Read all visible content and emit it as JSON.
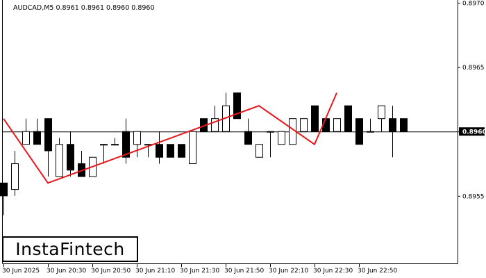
{
  "chart_data": {
    "type": "candlestick",
    "symbol_info": "AUDCAD,M5  0.8961 0.8961 0.8960 0.8960",
    "y_ticks": [
      "0.8970",
      "0.8965",
      "0.8960",
      "0.8955"
    ],
    "current_price": "0.8960",
    "x_ticks": [
      "30 Jun 2025",
      "30 Jun 20:30",
      "30 Jun 20:50",
      "30 Jun 21:10",
      "30 Jun 21:30",
      "30 Jun 21:50",
      "30 Jun 22:10",
      "30 Jun 22:30",
      "30 Jun 22:50"
    ],
    "ylim": [
      0.89497,
      0.897
    ],
    "candles": [
      {
        "o": 0.8956,
        "h": 0.8956,
        "l": 0.89535,
        "c": 0.8955
      },
      {
        "o": 0.89555,
        "h": 0.89585,
        "l": 0.8955,
        "c": 0.89575
      },
      {
        "o": 0.8959,
        "h": 0.8961,
        "l": 0.8959,
        "c": 0.896
      },
      {
        "o": 0.896,
        "h": 0.8961,
        "l": 0.8959,
        "c": 0.8959
      },
      {
        "o": 0.8961,
        "h": 0.8961,
        "l": 0.89565,
        "c": 0.89585
      },
      {
        "o": 0.89565,
        "h": 0.89595,
        "l": 0.89565,
        "c": 0.8959
      },
      {
        "o": 0.8959,
        "h": 0.896,
        "l": 0.89565,
        "c": 0.8957
      },
      {
        "o": 0.89575,
        "h": 0.89585,
        "l": 0.89565,
        "c": 0.89565
      },
      {
        "o": 0.89565,
        "h": 0.8958,
        "l": 0.89565,
        "c": 0.8958
      },
      {
        "o": 0.8959,
        "h": 0.8959,
        "l": 0.89575,
        "c": 0.8959
      },
      {
        "o": 0.8959,
        "h": 0.89595,
        "l": 0.8959,
        "c": 0.8959
      },
      {
        "o": 0.896,
        "h": 0.8961,
        "l": 0.89575,
        "c": 0.8958
      },
      {
        "o": 0.8959,
        "h": 0.896,
        "l": 0.8958,
        "c": 0.896
      },
      {
        "o": 0.8959,
        "h": 0.8959,
        "l": 0.8958,
        "c": 0.8959
      },
      {
        "o": 0.8959,
        "h": 0.896,
        "l": 0.89575,
        "c": 0.8958
      },
      {
        "o": 0.8959,
        "h": 0.8959,
        "l": 0.8958,
        "c": 0.8958
      },
      {
        "o": 0.8959,
        "h": 0.8959,
        "l": 0.8958,
        "c": 0.8958
      },
      {
        "o": 0.89575,
        "h": 0.896,
        "l": 0.89575,
        "c": 0.896
      },
      {
        "o": 0.8961,
        "h": 0.8961,
        "l": 0.896,
        "c": 0.896
      },
      {
        "o": 0.896,
        "h": 0.8962,
        "l": 0.896,
        "c": 0.8961
      },
      {
        "o": 0.896,
        "h": 0.8963,
        "l": 0.896,
        "c": 0.8962
      },
      {
        "o": 0.8963,
        "h": 0.8963,
        "l": 0.8961,
        "c": 0.8961
      },
      {
        "o": 0.896,
        "h": 0.8961,
        "l": 0.8959,
        "c": 0.8959
      },
      {
        "o": 0.8958,
        "h": 0.8959,
        "l": 0.8958,
        "c": 0.8959
      },
      {
        "o": 0.896,
        "h": 0.896,
        "l": 0.8958,
        "c": 0.896
      },
      {
        "o": 0.8959,
        "h": 0.896,
        "l": 0.8959,
        "c": 0.896
      },
      {
        "o": 0.8959,
        "h": 0.8961,
        "l": 0.8959,
        "c": 0.8961
      },
      {
        "o": 0.896,
        "h": 0.8961,
        "l": 0.896,
        "c": 0.8961
      },
      {
        "o": 0.8962,
        "h": 0.8962,
        "l": 0.896,
        "c": 0.896
      },
      {
        "o": 0.8961,
        "h": 0.8961,
        "l": 0.896,
        "c": 0.896
      },
      {
        "o": 0.896,
        "h": 0.8961,
        "l": 0.896,
        "c": 0.8961
      },
      {
        "o": 0.8962,
        "h": 0.8962,
        "l": 0.896,
        "c": 0.896
      },
      {
        "o": 0.8961,
        "h": 0.8961,
        "l": 0.8959,
        "c": 0.8959
      },
      {
        "o": 0.896,
        "h": 0.8961,
        "l": 0.896,
        "c": 0.896
      },
      {
        "o": 0.8961,
        "h": 0.8962,
        "l": 0.896,
        "c": 0.8962
      },
      {
        "o": 0.8961,
        "h": 0.8962,
        "l": 0.8958,
        "c": 0.896
      },
      {
        "o": 0.8961,
        "h": 0.8961,
        "l": 0.896,
        "c": 0.896
      }
    ],
    "pattern_line": [
      {
        "bar": 0,
        "price": 0.8961
      },
      {
        "bar": 4,
        "price": 0.8956
      },
      {
        "bar": 23,
        "price": 0.8962
      },
      {
        "bar": 28,
        "price": 0.8959
      },
      {
        "bar": 30,
        "price": 0.8963
      }
    ],
    "colors": {
      "pattern": "#e8171c",
      "bull_fill": "#ffffff",
      "bear_fill": "#000000",
      "axis": "#000000"
    }
  },
  "logo": {
    "text": "InstaFintech"
  }
}
